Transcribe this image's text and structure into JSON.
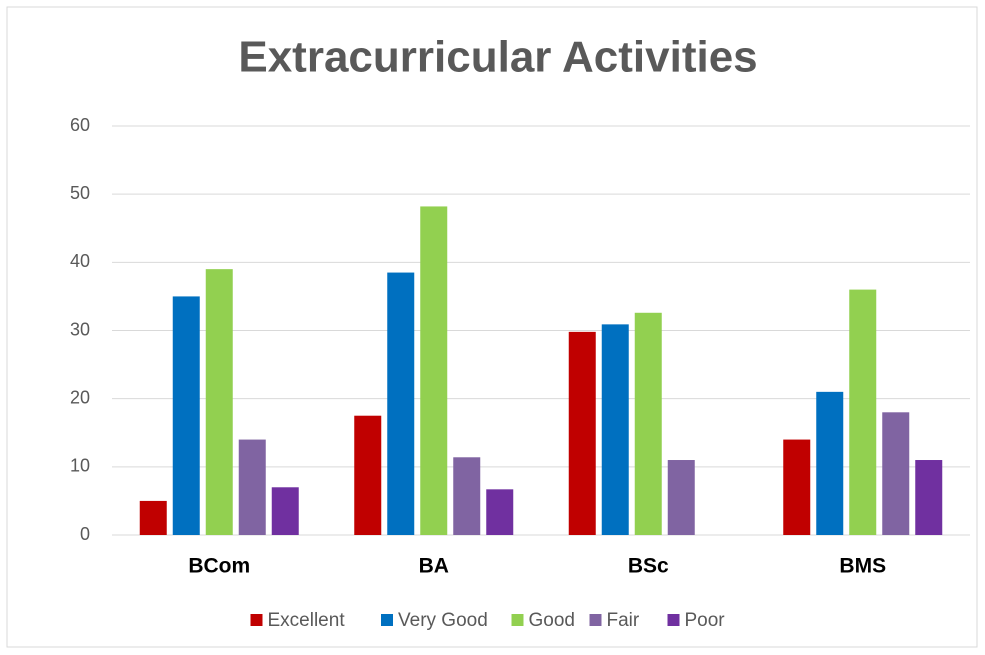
{
  "chart_data": {
    "type": "bar",
    "title": "Extracurricular Activities",
    "categories": [
      "BCom",
      "BA",
      "BSc",
      "BMS"
    ],
    "series": [
      {
        "name": "Excellent",
        "color": "#c00000",
        "values": [
          5,
          17.5,
          29.8,
          14
        ]
      },
      {
        "name": "Very Good",
        "color": "#0070c0",
        "values": [
          35,
          38.5,
          30.9,
          21
        ]
      },
      {
        "name": "Good",
        "color": "#92d050",
        "values": [
          39,
          48.2,
          32.6,
          36
        ]
      },
      {
        "name": "Fair",
        "color": "#8064a2",
        "values": [
          14,
          11.4,
          11,
          18
        ]
      },
      {
        "name": "Poor",
        "color": "#7030a0",
        "values": [
          7,
          6.7,
          null,
          11
        ]
      }
    ],
    "ylim": [
      0,
      60
    ],
    "yticks": [
      0,
      10,
      20,
      30,
      40,
      50,
      60
    ],
    "grid": true,
    "legend": "bottom"
  }
}
